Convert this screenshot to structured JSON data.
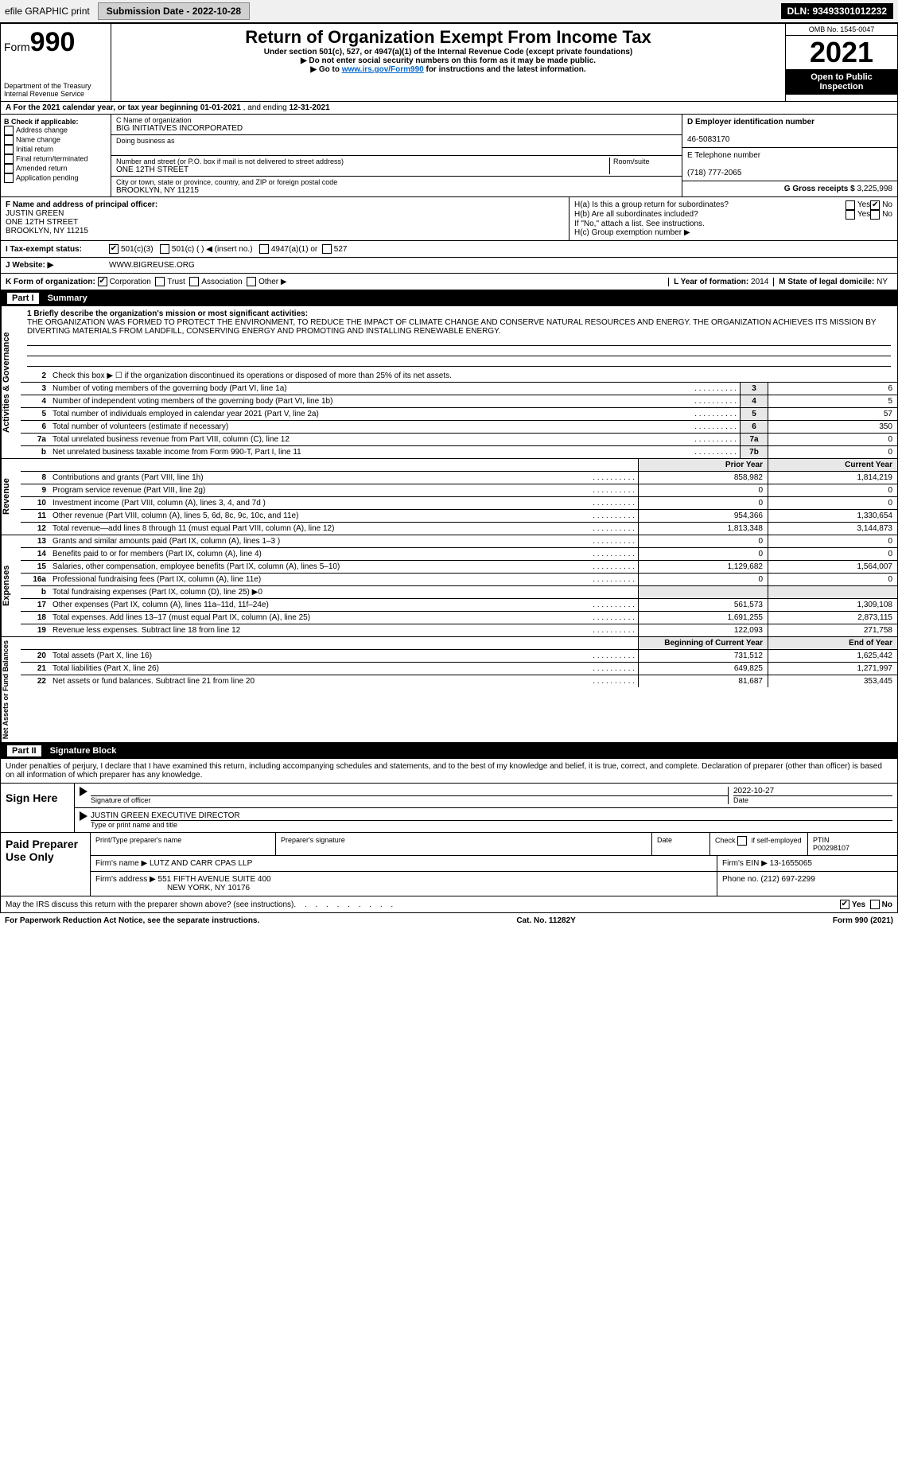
{
  "topbar": {
    "efile_label": "efile GRAPHIC print",
    "submission_label": "Submission Date - 2022-10-28",
    "dln": "DLN: 93493301012232"
  },
  "header": {
    "form_label": "Form",
    "form_number": "990",
    "dept": "Department of the Treasury",
    "irs": "Internal Revenue Service",
    "title": "Return of Organization Exempt From Income Tax",
    "sub1": "Under section 501(c), 527, or 4947(a)(1) of the Internal Revenue Code (except private foundations)",
    "sub2": "▶ Do not enter social security numbers on this form as it may be made public.",
    "sub3_pre": "▶ Go to ",
    "sub3_link": "www.irs.gov/Form990",
    "sub3_post": " for instructions and the latest information.",
    "omb": "OMB No. 1545-0047",
    "year": "2021",
    "open": "Open to Public Inspection"
  },
  "rowA": {
    "text_pre": "A  For the 2021 calendar year, or tax year beginning ",
    "begin": "01-01-2021",
    "mid": " , and ending ",
    "end": "12-31-2021"
  },
  "colB": {
    "heading": "B Check if applicable:",
    "items": [
      "Address change",
      "Name change",
      "Initial return",
      "Final return/terminated",
      "Amended return",
      "Application pending"
    ]
  },
  "colC": {
    "name_label": "C Name of organization",
    "name": "BIG INITIATIVES INCORPORATED",
    "dba_label": "Doing business as",
    "addr_label": "Number and street (or P.O. box if mail is not delivered to street address)",
    "room_label": "Room/suite",
    "addr": "ONE 12TH STREET",
    "city_label": "City or town, state or province, country, and ZIP or foreign postal code",
    "city": "BROOKLYN, NY  11215"
  },
  "colDE": {
    "d_label": "D Employer identification number",
    "ein": "46-5083170",
    "e_label": "E Telephone number",
    "phone": "(718) 777-2065",
    "g_label": "G Gross receipts $",
    "g_val": "3,225,998"
  },
  "colF": {
    "label": "F Name and address of principal officer:",
    "name": "JUSTIN GREEN",
    "addr1": "ONE 12TH STREET",
    "addr2": "BROOKLYN, NY  11215"
  },
  "colH": {
    "ha": "H(a)  Is this a group return for subordinates?",
    "hb": "H(b)  Are all subordinates included?",
    "hb_note": "If \"No,\" attach a list. See instructions.",
    "hc": "H(c)  Group exemption number ▶",
    "yes": "Yes",
    "no": "No"
  },
  "rowI": {
    "label": "I  Tax-exempt status:",
    "o1": "501(c)(3)",
    "o2": "501(c) (   ) ◀ (insert no.)",
    "o3": "4947(a)(1) or",
    "o4": "527"
  },
  "rowJ": {
    "label": "J  Website: ▶",
    "val": "WWW.BIGREUSE.ORG"
  },
  "rowK": {
    "label": "K Form of organization:",
    "o1": "Corporation",
    "o2": "Trust",
    "o3": "Association",
    "o4": "Other ▶"
  },
  "rowLM": {
    "l_label": "L Year of formation:",
    "l_val": "2014",
    "m_label": "M State of legal domicile:",
    "m_val": "NY"
  },
  "part1": {
    "num": "Part I",
    "title": "Summary"
  },
  "mission": {
    "label": "1  Briefly describe the organization's mission or most significant activities:",
    "text": "THE ORGANIZATION WAS FORMED TO PROTECT THE ENVIRONMENT, TO REDUCE THE IMPACT OF CLIMATE CHANGE AND CONSERVE NATURAL RESOURCES AND ENERGY. THE ORGANIZATION ACHIEVES ITS MISSION BY DIVERTING MATERIALS FROM LANDFILL, CONSERVING ENERGY AND PROMOTING AND INSTALLING RENEWABLE ENERGY."
  },
  "gov": {
    "side": "Activities & Governance",
    "r2": "Check this box ▶ ☐ if the organization discontinued its operations or disposed of more than 25% of its net assets.",
    "rows": [
      {
        "n": "3",
        "l": "Number of voting members of the governing body (Part VI, line 1a)",
        "b": "3",
        "v": "6"
      },
      {
        "n": "4",
        "l": "Number of independent voting members of the governing body (Part VI, line 1b)",
        "b": "4",
        "v": "5"
      },
      {
        "n": "5",
        "l": "Total number of individuals employed in calendar year 2021 (Part V, line 2a)",
        "b": "5",
        "v": "57"
      },
      {
        "n": "6",
        "l": "Total number of volunteers (estimate if necessary)",
        "b": "6",
        "v": "350"
      },
      {
        "n": "7a",
        "l": "Total unrelated business revenue from Part VIII, column (C), line 12",
        "b": "7a",
        "v": "0"
      },
      {
        "n": "b",
        "l": "Net unrelated business taxable income from Form 990-T, Part I, line 11",
        "b": "7b",
        "v": "0"
      }
    ]
  },
  "rev": {
    "side": "Revenue",
    "hdr_prior": "Prior Year",
    "hdr_curr": "Current Year",
    "rows": [
      {
        "n": "8",
        "l": "Contributions and grants (Part VIII, line 1h)",
        "p": "858,982",
        "c": "1,814,219"
      },
      {
        "n": "9",
        "l": "Program service revenue (Part VIII, line 2g)",
        "p": "0",
        "c": "0"
      },
      {
        "n": "10",
        "l": "Investment income (Part VIII, column (A), lines 3, 4, and 7d )",
        "p": "0",
        "c": "0"
      },
      {
        "n": "11",
        "l": "Other revenue (Part VIII, column (A), lines 5, 6d, 8c, 9c, 10c, and 11e)",
        "p": "954,366",
        "c": "1,330,654"
      },
      {
        "n": "12",
        "l": "Total revenue—add lines 8 through 11 (must equal Part VIII, column (A), line 12)",
        "p": "1,813,348",
        "c": "3,144,873"
      }
    ]
  },
  "exp": {
    "side": "Expenses",
    "rows": [
      {
        "n": "13",
        "l": "Grants and similar amounts paid (Part IX, column (A), lines 1–3 )",
        "p": "0",
        "c": "0"
      },
      {
        "n": "14",
        "l": "Benefits paid to or for members (Part IX, column (A), line 4)",
        "p": "0",
        "c": "0"
      },
      {
        "n": "15",
        "l": "Salaries, other compensation, employee benefits (Part IX, column (A), lines 5–10)",
        "p": "1,129,682",
        "c": "1,564,007"
      },
      {
        "n": "16a",
        "l": "Professional fundraising fees (Part IX, column (A), line 11e)",
        "p": "0",
        "c": "0"
      },
      {
        "n": "b",
        "l": "Total fundraising expenses (Part IX, column (D), line 25) ▶0",
        "p": "",
        "c": "",
        "shade": true
      },
      {
        "n": "17",
        "l": "Other expenses (Part IX, column (A), lines 11a–11d, 11f–24e)",
        "p": "561,573",
        "c": "1,309,108"
      },
      {
        "n": "18",
        "l": "Total expenses. Add lines 13–17 (must equal Part IX, column (A), line 25)",
        "p": "1,691,255",
        "c": "2,873,115"
      },
      {
        "n": "19",
        "l": "Revenue less expenses. Subtract line 18 from line 12",
        "p": "122,093",
        "c": "271,758"
      }
    ]
  },
  "net": {
    "side": "Net Assets or Fund Balances",
    "hdr_begin": "Beginning of Current Year",
    "hdr_end": "End of Year",
    "rows": [
      {
        "n": "20",
        "l": "Total assets (Part X, line 16)",
        "p": "731,512",
        "c": "1,625,442"
      },
      {
        "n": "21",
        "l": "Total liabilities (Part X, line 26)",
        "p": "649,825",
        "c": "1,271,997"
      },
      {
        "n": "22",
        "l": "Net assets or fund balances. Subtract line 21 from line 20",
        "p": "81,687",
        "c": "353,445"
      }
    ]
  },
  "part2": {
    "num": "Part II",
    "title": "Signature Block"
  },
  "sig": {
    "intro": "Under penalties of perjury, I declare that I have examined this return, including accompanying schedules and statements, and to the best of my knowledge and belief, it is true, correct, and complete. Declaration of preparer (other than officer) is based on all information of which preparer has any knowledge.",
    "sign_here": "Sign Here",
    "sig_officer": "Signature of officer",
    "date_label": "Date",
    "date": "2022-10-27",
    "name": "JUSTIN GREEN  EXECUTIVE DIRECTOR",
    "name_label": "Type or print name and title"
  },
  "paid": {
    "label": "Paid Preparer Use Only",
    "h1": "Print/Type preparer's name",
    "h2": "Preparer's signature",
    "h3": "Date",
    "h4_a": "Check",
    "h4_b": "if self-employed",
    "h5": "PTIN",
    "ptin": "P00298107",
    "firm_name_l": "Firm's name    ▶",
    "firm_name": "LUTZ AND CARR CPAS LLP",
    "firm_ein_l": "Firm's EIN ▶",
    "firm_ein": "13-1655065",
    "firm_addr_l": "Firm's address ▶",
    "firm_addr1": "551 FIFTH AVENUE SUITE 400",
    "firm_addr2": "NEW YORK, NY  10176",
    "phone_l": "Phone no.",
    "phone": "(212) 697-2299"
  },
  "may_irs": {
    "text": "May the IRS discuss this return with the preparer shown above? (see instructions)",
    "yes": "Yes",
    "no": "No"
  },
  "footer": {
    "left": "For Paperwork Reduction Act Notice, see the separate instructions.",
    "mid": "Cat. No. 11282Y",
    "right_pre": "Form ",
    "right_num": "990",
    "right_post": " (2021)"
  },
  "dots": ".  .  .  .  .  .  .  .  .  ."
}
